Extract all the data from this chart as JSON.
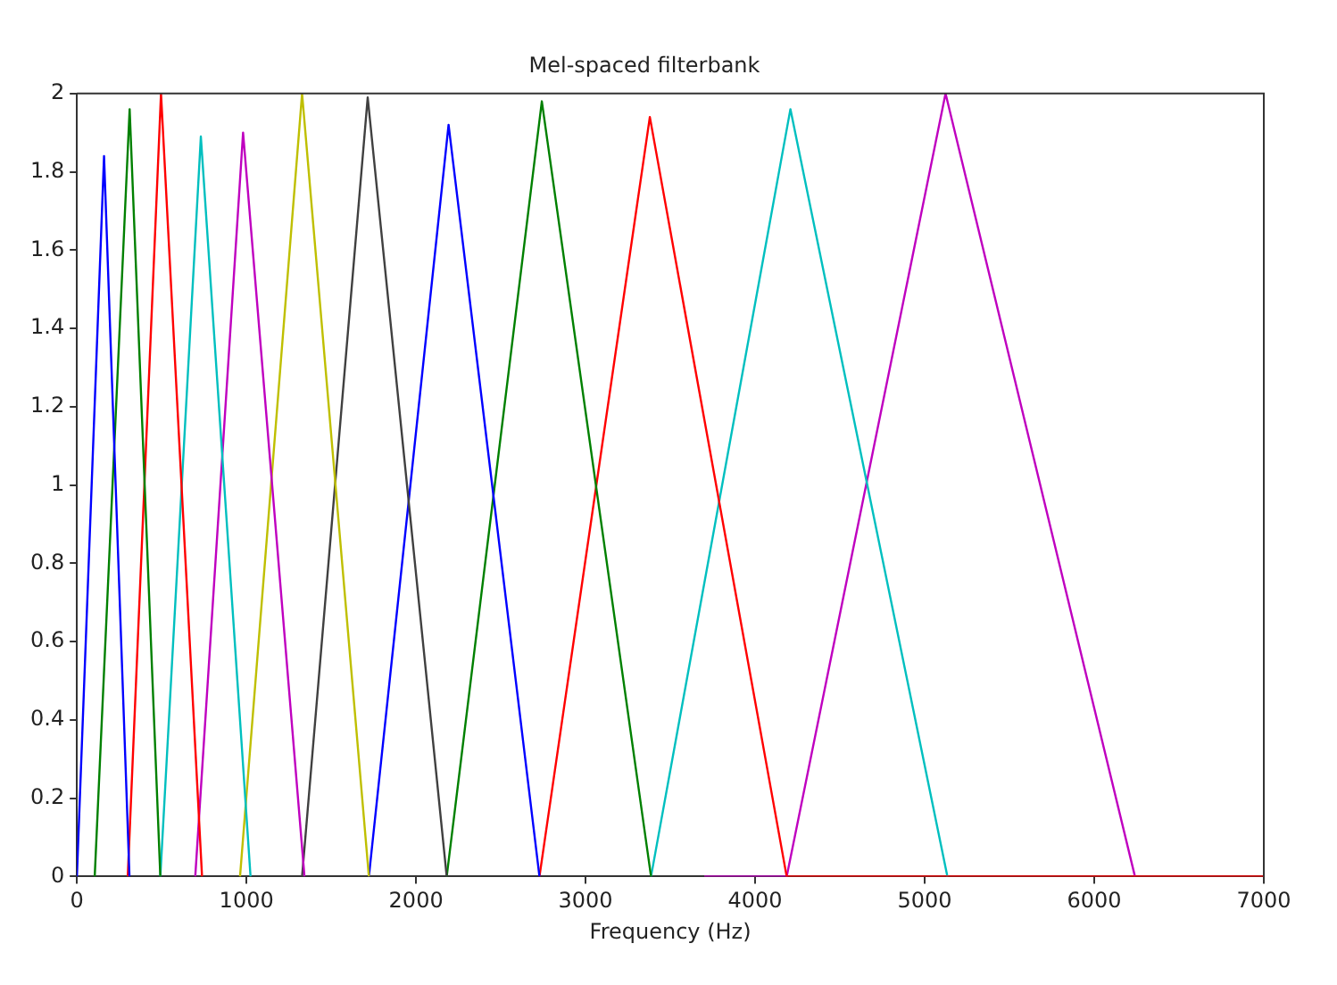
{
  "chart_data": {
    "type": "line",
    "title": "Mel-spaced filterbank",
    "xlabel": "Frequency (Hz)",
    "xlim": [
      0,
      7000
    ],
    "xticks": [
      0,
      1000,
      2000,
      3000,
      4000,
      5000,
      6000,
      7000
    ],
    "ylim": [
      0,
      2
    ],
    "yticks": [
      0,
      0.2,
      0.4,
      0.6,
      0.8,
      1,
      1.2,
      1.4,
      1.6,
      1.8,
      2
    ],
    "grid": false,
    "legend": false,
    "marker": "none",
    "line_style": "solid",
    "series": [
      {
        "color": "#0000ff",
        "x": [
          0,
          160,
          310
        ],
        "values": [
          0,
          1.84,
          0
        ]
      },
      {
        "color": "#008000",
        "x": [
          105,
          311,
          492
        ],
        "values": [
          0,
          1.96,
          0
        ]
      },
      {
        "color": "#ff0000",
        "x": [
          300,
          496,
          738
        ],
        "values": [
          0,
          2,
          0
        ]
      },
      {
        "color": "#00bfbf",
        "x": [
          492,
          731,
          1024
        ],
        "values": [
          0,
          1.89,
          0
        ]
      },
      {
        "color": "#bf00bf",
        "x": [
          698,
          980,
          1342
        ],
        "values": [
          0,
          1.9,
          0
        ]
      },
      {
        "color": "#bfbf00",
        "x": [
          962,
          1328,
          1722
        ],
        "values": [
          0,
          2,
          0
        ]
      },
      {
        "color": "#404040",
        "x": [
          1328,
          1715,
          2181
        ],
        "values": [
          0,
          1.99,
          0
        ]
      },
      {
        "color": "#0000ff",
        "x": [
          1722,
          2192,
          2728
        ],
        "values": [
          0,
          1.92,
          0
        ]
      },
      {
        "color": "#008000",
        "x": [
          2181,
          2742,
          3386
        ],
        "values": [
          0,
          1.98,
          0
        ]
      },
      {
        "color": "#ff0000",
        "x": [
          2728,
          3379,
          4186,
          7000
        ],
        "values": [
          0,
          1.94,
          0,
          0
        ]
      },
      {
        "color": "#00bfbf",
        "x": [
          3386,
          4208,
          5134
        ],
        "values": [
          0,
          1.96,
          0
        ]
      },
      {
        "color": "#bf00bf",
        "x": [
          3700,
          4186,
          5123,
          6240
        ],
        "values": [
          0,
          0,
          2,
          0
        ]
      }
    ]
  }
}
